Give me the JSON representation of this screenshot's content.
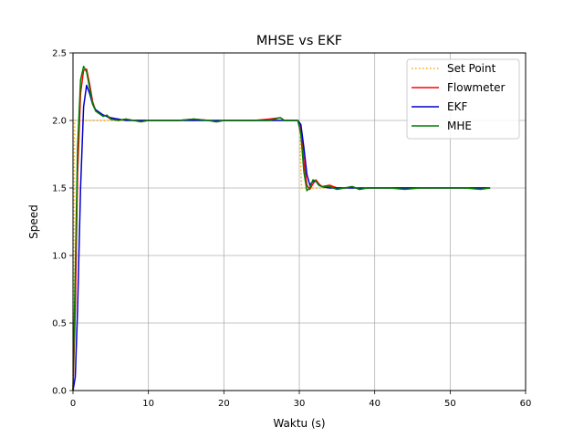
{
  "chart_data": {
    "type": "line",
    "title": "MHSE vs EKF",
    "xlabel": "Waktu (s)",
    "ylabel": "Speed",
    "xlim": [
      0,
      60
    ],
    "ylim": [
      0,
      2.5
    ],
    "xticks": [
      0,
      10,
      20,
      30,
      40,
      50,
      60
    ],
    "xtick_labels": [
      "0",
      "10",
      "20",
      "30",
      "40",
      "50",
      "60"
    ],
    "yticks": [
      0,
      0.5,
      1.0,
      1.5,
      2.0,
      2.5
    ],
    "ytick_labels": [
      "0.0",
      "0.5",
      "1.0",
      "1.5",
      "2.0",
      "2.5"
    ],
    "grid": true,
    "legend_position": "upper right",
    "series": [
      {
        "name": "Set Point",
        "color": "#ffa500",
        "style": "dotted",
        "x": [
          0,
          0.2,
          30,
          30.3,
          55.3
        ],
        "y": [
          0,
          2.0,
          2.0,
          1.5,
          1.5
        ]
      },
      {
        "name": "Flowmeter",
        "color": "#ff0000",
        "style": "solid",
        "x": [
          0,
          0.3,
          0.6,
          1.0,
          1.4,
          1.8,
          2.2,
          2.6,
          3.0,
          3.5,
          4.0,
          4.5,
          5.0,
          6,
          7,
          8,
          9,
          10,
          12,
          14,
          16,
          18,
          19,
          20,
          22,
          24,
          26,
          27.5,
          28,
          29,
          29.8,
          30.2,
          30.6,
          31.0,
          31.4,
          31.8,
          32.2,
          32.6,
          33,
          34,
          35,
          36,
          37,
          38,
          39,
          40,
          42,
          44,
          46,
          48,
          50,
          52,
          54,
          55.3
        ],
        "y": [
          0,
          0.6,
          1.6,
          2.2,
          2.37,
          2.38,
          2.27,
          2.14,
          2.07,
          2.05,
          2.04,
          2.03,
          2.01,
          2.0,
          2.01,
          2.0,
          2.0,
          2.0,
          2.0,
          2.0,
          2.01,
          2.0,
          1.99,
          2.0,
          2.0,
          2.0,
          2.01,
          2.02,
          2.0,
          2.0,
          2.0,
          1.95,
          1.7,
          1.52,
          1.49,
          1.53,
          1.56,
          1.53,
          1.51,
          1.52,
          1.5,
          1.5,
          1.51,
          1.49,
          1.5,
          1.5,
          1.5,
          1.5,
          1.5,
          1.5,
          1.5,
          1.5,
          1.5,
          1.5
        ]
      },
      {
        "name": "EKF",
        "color": "#0000cc",
        "style": "solid",
        "x": [
          0,
          0.3,
          0.6,
          1.0,
          1.4,
          1.8,
          2.2,
          2.6,
          3.0,
          3.5,
          4.0,
          4.5,
          5.0,
          6,
          7,
          8,
          9,
          10,
          12,
          14,
          16,
          18,
          20,
          22,
          24,
          26,
          28,
          29,
          29.8,
          30.2,
          30.6,
          31.0,
          31.4,
          31.8,
          32.2,
          32.6,
          33,
          34,
          35,
          36,
          37,
          38,
          40,
          42,
          44,
          46,
          48,
          50,
          52,
          54,
          55.3
        ],
        "y": [
          0,
          0.1,
          0.6,
          1.5,
          2.1,
          2.26,
          2.2,
          2.12,
          2.08,
          2.06,
          2.04,
          2.03,
          2.02,
          2.01,
          2.0,
          2.0,
          2.0,
          2.0,
          2.0,
          2.0,
          2.0,
          2.0,
          2.0,
          2.0,
          2.0,
          2.0,
          2.0,
          2.0,
          2.0,
          1.97,
          1.8,
          1.6,
          1.52,
          1.55,
          1.55,
          1.52,
          1.51,
          1.5,
          1.5,
          1.5,
          1.5,
          1.5,
          1.5,
          1.5,
          1.5,
          1.5,
          1.5,
          1.5,
          1.5,
          1.5,
          1.5
        ]
      },
      {
        "name": "MHE",
        "color": "#008000",
        "style": "solid",
        "x": [
          0,
          0.3,
          0.6,
          1.0,
          1.4,
          1.8,
          2.2,
          2.6,
          3.0,
          3.5,
          4.0,
          4.5,
          5.0,
          6,
          7,
          8,
          9,
          10,
          12,
          14,
          16,
          18,
          19,
          20,
          22,
          24,
          26,
          27.5,
          28,
          29,
          29.8,
          30.2,
          30.6,
          31.0,
          31.4,
          31.8,
          32.2,
          32.6,
          33,
          34,
          35,
          36,
          37,
          38,
          39,
          40,
          42,
          44,
          46,
          48,
          50,
          52,
          54,
          55.3
        ],
        "y": [
          0,
          0.9,
          1.8,
          2.3,
          2.4,
          2.36,
          2.24,
          2.12,
          2.07,
          2.05,
          2.03,
          2.04,
          2.01,
          2.0,
          2.01,
          2.0,
          1.99,
          2.0,
          2.0,
          2.0,
          2.01,
          2.0,
          1.99,
          2.0,
          2.0,
          2.0,
          2.0,
          2.02,
          2.0,
          2.0,
          2.0,
          1.9,
          1.62,
          1.48,
          1.5,
          1.56,
          1.55,
          1.52,
          1.51,
          1.51,
          1.49,
          1.5,
          1.51,
          1.49,
          1.5,
          1.5,
          1.5,
          1.49,
          1.5,
          1.5,
          1.5,
          1.5,
          1.49,
          1.5
        ]
      }
    ]
  }
}
